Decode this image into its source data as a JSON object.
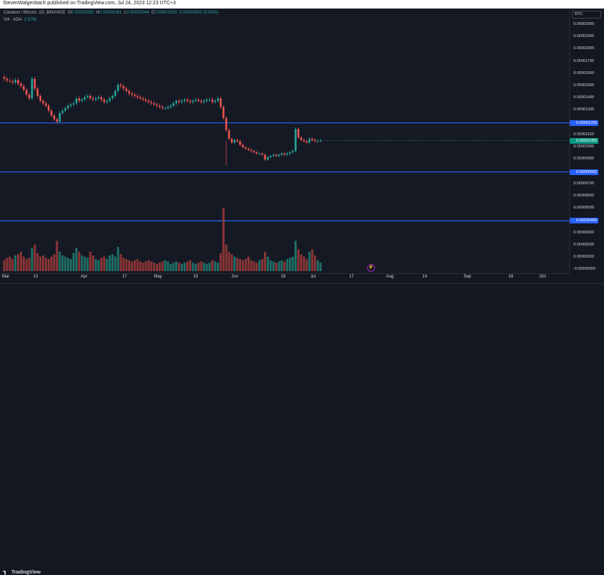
{
  "header": {
    "publisher_text": "StevenWalgenbach published on TradingView.com, Jul 24, 2023 12:23 UTC+3"
  },
  "legend": {
    "symbol": "Cardano / Bitcoin, 1D, BINANCE",
    "open_label": "O",
    "open": "0.00001055",
    "high_label": "H",
    "high": "0.00001061",
    "low_label": "L",
    "low": "0.00001044",
    "close_label": "C",
    "close": "0.00001055",
    "change": "0.00000000 (0.00%)",
    "volume_label": "Vol · ADA",
    "volume_value": "2.87M"
  },
  "currency_badge": "BTC",
  "price_axis_labels": [
    "0.00002000",
    "0.00001900",
    "0.00001800",
    "0.00001700",
    "0.00001600",
    "0.00001500",
    "0.00001400",
    "0.00001300",
    "0.00001100",
    "0.00001000",
    "0.00000900",
    "0.00000700",
    "0.00000600",
    "0.00000500",
    "0.00000300",
    "0.00000200",
    "0.00000100",
    "-0.00000000"
  ],
  "price_tags": [
    {
      "value": "0.00001200",
      "color": "#2962ff"
    },
    {
      "value": "0.00001055",
      "color": "#089981"
    },
    {
      "value": "0.00000800",
      "color": "#2962ff"
    },
    {
      "value": "0.00000400",
      "color": "#2962ff"
    }
  ],
  "time_labels": [
    "Mar",
    "13",
    "Apr",
    "17",
    "May",
    "15",
    "Jun",
    "19",
    "Jul",
    "17",
    "Aug",
    "14",
    "Sep",
    "18",
    "Oct"
  ],
  "brand": "TradingView",
  "colors": {
    "up": "#26a69a",
    "down": "#ef5350",
    "hline": "#2962ff",
    "vol_up": "#1f6f66",
    "vol_down": "#8c3535"
  },
  "chart_data": {
    "type": "candlestick",
    "horizontal_lines": [
      1.2e-05,
      8e-06,
      4e-06
    ],
    "price_range": [
      -1e-07,
      2.11e-05
    ],
    "closes": [
      1.56e-05,
      1.545e-05,
      1.54e-05,
      1.53e-05,
      1.55e-05,
      1.52e-05,
      1.5e-05,
      1.47e-05,
      1.43e-05,
      1.4e-05,
      1.56e-05,
      1.48e-05,
      1.42e-05,
      1.38e-05,
      1.36e-05,
      1.34e-05,
      1.3e-05,
      1.26e-05,
      1.23e-05,
      1.21e-05,
      1.28e-05,
      1.3e-05,
      1.32e-05,
      1.34e-05,
      1.35e-05,
      1.36e-05,
      1.4e-05,
      1.38e-05,
      1.39e-05,
      1.41e-05,
      1.42e-05,
      1.4e-05,
      1.39e-05,
      1.4e-05,
      1.41e-05,
      1.39e-05,
      1.37e-05,
      1.38e-05,
      1.4e-05,
      1.42e-05,
      1.46e-05,
      1.51e-05,
      1.5e-05,
      1.48e-05,
      1.46e-05,
      1.44e-05,
      1.43e-05,
      1.42e-05,
      1.41e-05,
      1.4e-05,
      1.39e-05,
      1.38e-05,
      1.37e-05,
      1.36e-05,
      1.35e-05,
      1.34e-05,
      1.33e-05,
      1.32e-05,
      1.32e-05,
      1.33e-05,
      1.34e-05,
      1.36e-05,
      1.38e-05,
      1.37e-05,
      1.38e-05,
      1.39e-05,
      1.38e-05,
      1.37e-05,
      1.38e-05,
      1.39e-05,
      1.38e-05,
      1.37e-05,
      1.38e-05,
      1.39e-05,
      1.39e-05,
      1.37e-05,
      1.38e-05,
      1.4e-05,
      1.33e-05,
      1.24e-05,
      1.14e-05,
      1.07e-05,
      1.04e-05,
      1.06e-05,
      1.05e-05,
      1.02e-05,
      1e-05,
      9.9e-06,
      9.8e-06,
      9.7e-06,
      9.6e-06,
      9.5e-06,
      9.5e-06,
      9.4e-06,
      9e-06,
      9.2e-06,
      9.3e-06,
      9.4e-06,
      9.3e-06,
      9.4e-06,
      9.5e-06,
      9.4e-06,
      9.5e-06,
      9.6e-06,
      9.7e-06,
      1.15e-05,
      1.08e-05,
      1.06e-05,
      1.05e-05,
      1.04e-05,
      1.07e-05,
      1.06e-05,
      1.05e-05,
      1.055e-05,
      1.055e-05
    ],
    "volumes": [
      0.9,
      1.1,
      1.2,
      1.0,
      1.3,
      1.4,
      1.6,
      1.2,
      1.0,
      1.1,
      1.9,
      2.2,
      1.5,
      1.2,
      1.3,
      1.1,
      1.0,
      1.2,
      1.4,
      2.5,
      1.6,
      1.3,
      1.2,
      1.1,
      1.0,
      1.5,
      1.9,
      1.6,
      1.3,
      1.2,
      1.1,
      1.6,
      1.3,
      1.0,
      0.9,
      1.1,
      1.2,
      1.0,
      1.3,
      1.4,
      1.2,
      2.0,
      1.4,
      1.1,
      1.0,
      0.9,
      0.8,
      0.9,
      1.0,
      0.8,
      0.7,
      0.8,
      0.9,
      0.8,
      0.7,
      0.6,
      0.7,
      0.8,
      0.9,
      0.8,
      0.6,
      0.7,
      0.8,
      0.7,
      0.6,
      0.7,
      0.8,
      0.9,
      0.7,
      0.6,
      0.7,
      0.8,
      0.7,
      0.6,
      0.7,
      0.9,
      0.8,
      0.7,
      1.5,
      5.2,
      2.2,
      1.6,
      1.4,
      1.2,
      1.1,
      1.0,
      0.9,
      1.0,
      1.2,
      0.9,
      0.8,
      0.7,
      0.9,
      1.0,
      1.6,
      1.2,
      0.9,
      0.8,
      0.7,
      0.8,
      0.9,
      0.8,
      1.0,
      1.1,
      1.2,
      2.5,
      1.8,
      1.4,
      1.2,
      1.0,
      1.6,
      1.8,
      1.3,
      0.9,
      0.7
    ]
  }
}
